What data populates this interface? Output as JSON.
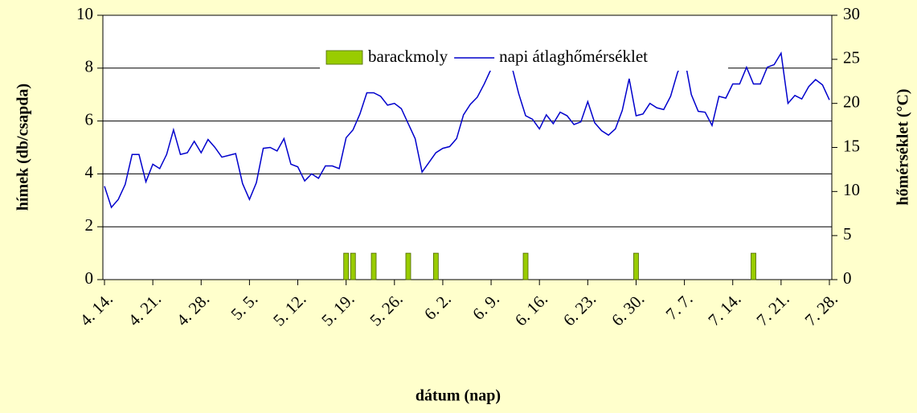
{
  "chart_data": {
    "type": "combo",
    "xlabel": "dátum (nap)",
    "ylabel": "hímek (db/csapda)",
    "y2label": "hőmérséklet (°C)",
    "categories": [
      "4. 14.",
      null,
      null,
      null,
      null,
      null,
      null,
      "4. 21.",
      null,
      null,
      null,
      null,
      null,
      null,
      "4. 28.",
      null,
      null,
      null,
      null,
      null,
      null,
      "5. 5.",
      null,
      null,
      null,
      null,
      null,
      null,
      "5. 12.",
      null,
      null,
      null,
      null,
      null,
      null,
      "5. 19.",
      null,
      null,
      null,
      null,
      null,
      null,
      "5. 26.",
      null,
      null,
      null,
      null,
      null,
      null,
      "6. 2.",
      null,
      null,
      null,
      null,
      null,
      null,
      "6. 9.",
      null,
      null,
      null,
      null,
      null,
      null,
      "6. 16.",
      null,
      null,
      null,
      null,
      null,
      null,
      "6. 23.",
      null,
      null,
      null,
      null,
      null,
      null,
      "6. 30.",
      null,
      null,
      null,
      null,
      null,
      null,
      "7. 7.",
      null,
      null,
      null,
      null,
      null,
      null,
      "7. 14.",
      null,
      null,
      null,
      null,
      null,
      null,
      "7. 21.",
      null,
      null,
      null,
      null,
      null,
      null,
      "7. 28."
    ],
    "series": [
      {
        "name": "barackmoly",
        "type": "bar",
        "color": "#99cc00",
        "axis": "y",
        "values": [
          0,
          0,
          0,
          0,
          0,
          0,
          0,
          0,
          0,
          0,
          0,
          0,
          0,
          0,
          0,
          0,
          0,
          0,
          0,
          0,
          0,
          0,
          0,
          0,
          0,
          0,
          0,
          0,
          0,
          0,
          0,
          0,
          0,
          0,
          0,
          1,
          1,
          0,
          0,
          1,
          0,
          0,
          0,
          0,
          1,
          0,
          0,
          0,
          1,
          0,
          0,
          0,
          0,
          0,
          0,
          0,
          0,
          0,
          0,
          0,
          0,
          1,
          0,
          0,
          0,
          0,
          0,
          0,
          0,
          0,
          0,
          0,
          0,
          0,
          0,
          0,
          0,
          1,
          0,
          0,
          0,
          0,
          0,
          0,
          0,
          0,
          0,
          0,
          0,
          0,
          0,
          0,
          0,
          0,
          1,
          0,
          0,
          0,
          0,
          0,
          0,
          0,
          0,
          0,
          0,
          0
        ]
      },
      {
        "name": "napi átlaghőmérséklet",
        "type": "line",
        "color": "#0000cc",
        "axis": "y2",
        "values": [
          10.6,
          8.2,
          9.1,
          10.8,
          14.2,
          14.2,
          11.1,
          13.1,
          12.6,
          14.2,
          17.0,
          14.2,
          14.4,
          15.7,
          14.4,
          15.9,
          15.0,
          13.9,
          14.1,
          14.3,
          10.9,
          9.1,
          11.0,
          14.9,
          15.0,
          14.6,
          16.0,
          13.1,
          12.8,
          11.2,
          12.0,
          11.5,
          12.9,
          12.9,
          12.6,
          16.1,
          17.0,
          18.8,
          21.2,
          21.2,
          20.8,
          19.8,
          20.0,
          19.4,
          17.7,
          16.0,
          12.2,
          13.3,
          14.4,
          14.9,
          15.1,
          16.0,
          18.7,
          19.9,
          20.7,
          22.2,
          23.9,
          25.3,
          25.2,
          24.2,
          21.1,
          18.6,
          18.2,
          17.1,
          18.7,
          17.7,
          19.0,
          18.6,
          17.6,
          17.9,
          20.2,
          17.8,
          16.9,
          16.4,
          17.1,
          19.2,
          22.8,
          18.6,
          18.8,
          20.0,
          19.5,
          19.3,
          20.8,
          23.5,
          25.2,
          21.0,
          19.1,
          19.0,
          17.5,
          20.8,
          20.6,
          22.2,
          22.2,
          24.1,
          22.2,
          22.2,
          24.1,
          24.4,
          25.7,
          20.0,
          20.9,
          20.5,
          21.9,
          22.7,
          22.1,
          20.4
        ]
      }
    ],
    "ylim": [
      0,
      10
    ],
    "yticks": [
      0,
      2,
      4,
      6,
      8,
      10
    ],
    "y2lim": [
      0,
      30
    ],
    "y2ticks": [
      0,
      5,
      10,
      15,
      20,
      25,
      30
    ],
    "grid": true,
    "legend": "top"
  }
}
